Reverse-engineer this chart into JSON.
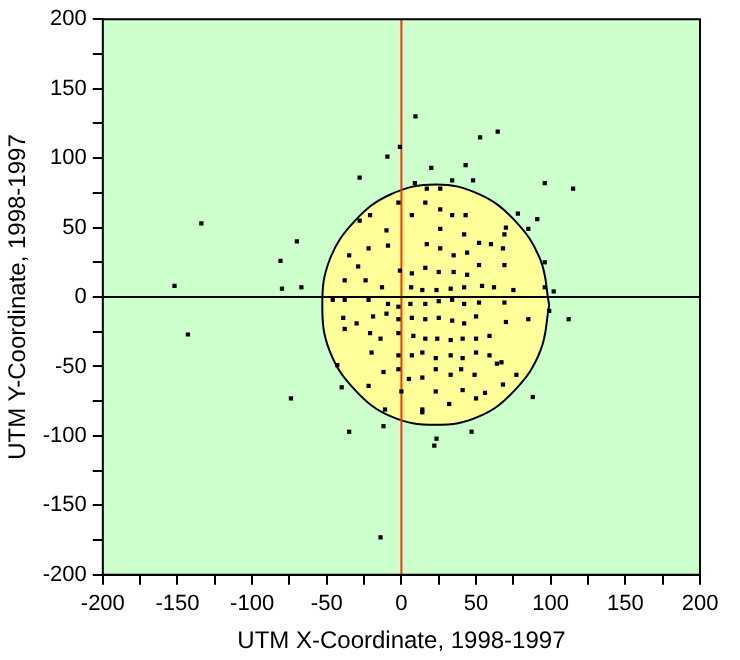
{
  "chart_data": {
    "type": "scatter",
    "xlabel": "UTM X-Coordinate, 1998-1997",
    "ylabel": "UTM Y-Coordinate, 1998-1997",
    "xlim": [
      -200,
      200
    ],
    "ylim": [
      -200,
      200
    ],
    "xticks": [
      -200,
      {
        "value": -175,
        "label": null
      },
      -150,
      {
        "value": -125,
        "label": null
      },
      -100,
      {
        "value": -75,
        "label": null
      },
      -50,
      {
        "value": -25,
        "label": null
      },
      0,
      {
        "value": 25,
        "label": null
      },
      50,
      {
        "value": 75,
        "label": null
      },
      100,
      {
        "value": 125,
        "label": null
      },
      150,
      {
        "value": 175,
        "label": null
      },
      200
    ],
    "yticks": [
      -200,
      {
        "value": -175,
        "label": null
      },
      -150,
      {
        "value": -125,
        "label": null
      },
      -100,
      {
        "value": -75,
        "label": null
      },
      -50,
      {
        "value": -25,
        "label": null
      },
      0,
      {
        "value": 25,
        "label": null
      },
      50,
      {
        "value": 75,
        "label": null
      },
      100,
      {
        "value": 125,
        "label": null
      },
      150,
      {
        "value": 175,
        "label": null
      },
      200
    ],
    "grid": false,
    "legend": false,
    "ref_lines": [
      {
        "axis": "x",
        "value": 0,
        "color": "#ff3300"
      },
      {
        "axis": "y",
        "value": 0,
        "color": "#000000"
      }
    ],
    "series": [
      {
        "color": "#000000",
        "marker": "square",
        "x": [
          9.4,
          -1,
          -9.4,
          52.7,
          64.5,
          20,
          43,
          -28,
          9,
          34,
          48,
          96,
          115,
          -134,
          -70,
          -81,
          -152,
          -80,
          -67,
          -143,
          112,
          102,
          -74,
          -35,
          -12,
          23.5,
          22,
          47,
          88,
          -14,
          78,
          91,
          85,
          70,
          96,
          96,
          99,
          85,
          77,
          68,
          67,
          -40,
          -43,
          -22,
          -11,
          14,
          14,
          32,
          41,
          56,
          50,
          -28,
          -21,
          -35,
          -22,
          -29,
          -9,
          -10,
          -2,
          7,
          16,
          17,
          26,
          26,
          34,
          43,
          26,
          42,
          60,
          52,
          69,
          68,
          26,
          17,
          35,
          44,
          52,
          69,
          16,
          25,
          35,
          44,
          7,
          -1,
          -38,
          -24,
          -13,
          6.5,
          14,
          23.5,
          33,
          42,
          54,
          62,
          75,
          -46,
          -38,
          -22,
          -9,
          -2,
          6,
          16,
          25,
          34,
          42,
          52,
          69,
          -39,
          -30,
          -19,
          -10,
          -2,
          7,
          16,
          25,
          34,
          42,
          50,
          70,
          -38,
          -21,
          -14,
          -2,
          8,
          16,
          24,
          33,
          41,
          50,
          59,
          -20,
          -2,
          7,
          14,
          23,
          33,
          41,
          50,
          59,
          -12,
          -2,
          14,
          23,
          33,
          40,
          49,
          64,
          0,
          5,
          23
        ],
        "values": [
          130,
          108,
          101,
          115,
          119,
          93,
          95,
          86,
          82,
          84,
          84,
          82,
          78,
          53,
          40,
          26,
          8,
          6,
          7,
          -27,
          -16,
          4,
          -73,
          -97,
          -93,
          -102,
          -107,
          -97,
          -72,
          -173,
          60,
          56,
          49,
          50,
          25,
          7,
          -10,
          -16,
          -56,
          -63,
          -47,
          -65,
          -49,
          -64,
          -81,
          -81,
          -83,
          -77,
          -67,
          -69,
          -73,
          55,
          59,
          30,
          35,
          22,
          37,
          48,
          68,
          59,
          68,
          78,
          78,
          63,
          59,
          59,
          49,
          45,
          38,
          39,
          45,
          35,
          35,
          38,
          30,
          32,
          23,
          23,
          21,
          18,
          18,
          16,
          17,
          19,
          12,
          12,
          7,
          7,
          5,
          5,
          6,
          7,
          8,
          7,
          5,
          -2,
          -2,
          -2,
          -5,
          -7,
          -5,
          -5,
          -3,
          -2,
          -5,
          -4,
          -4,
          -15,
          -19,
          -14,
          -12,
          -16,
          -15,
          -16,
          -15,
          -17,
          -19,
          -14,
          -18,
          -23,
          -26,
          -30,
          -26,
          -28,
          -30,
          -30,
          -31,
          -30,
          -30,
          -28,
          -40,
          -42,
          -42,
          -40,
          -44,
          -42,
          -44,
          -40,
          -42,
          -54,
          -52,
          -58,
          -52,
          -56,
          -52,
          -56,
          -48,
          -68,
          -59,
          -68
        ]
      },
      {
        "type": "area",
        "color": "#ffff99",
        "marker": "none",
        "x": [
          99,
          93,
          76,
          52,
          23,
          -7,
          -31,
          -48,
          -53,
          -48,
          -31,
          -7,
          23,
          52,
          76,
          93,
          99
        ],
        "values": [
          -6,
          27,
          55,
          74,
          81,
          74,
          55,
          27,
          -6,
          -39,
          -67,
          -86,
          -92,
          -86,
          -67,
          -39,
          -6
        ]
      }
    ]
  }
}
